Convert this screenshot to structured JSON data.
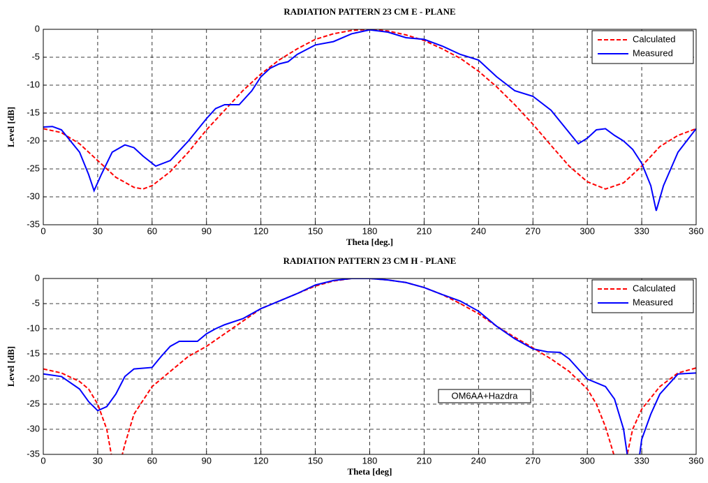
{
  "chart_data": [
    {
      "type": "line",
      "title": "RADIATION PATTERN 23 CM E - PLANE",
      "xlabel": "Theta [deg.]",
      "ylabel": "Level [dB]",
      "xlim": [
        0,
        360
      ],
      "ylim": [
        -35,
        0
      ],
      "xticks": [
        0,
        30,
        60,
        90,
        120,
        150,
        180,
        210,
        240,
        270,
        300,
        330,
        360
      ],
      "yticks": [
        0,
        -5,
        -10,
        -15,
        -20,
        -25,
        -30,
        -35
      ],
      "grid": true,
      "legend": "upper right",
      "series": [
        {
          "name": "Calculated",
          "color": "#ff0000",
          "dash": "dashed",
          "x": [
            0,
            10,
            20,
            30,
            40,
            50,
            55,
            60,
            70,
            80,
            90,
            100,
            110,
            120,
            130,
            140,
            150,
            160,
            170,
            180,
            190,
            200,
            210,
            220,
            230,
            240,
            250,
            260,
            270,
            280,
            290,
            300,
            310,
            320,
            330,
            340,
            350,
            360
          ],
          "values": [
            -17.8,
            -18.5,
            -20.5,
            -23.5,
            -26.5,
            -28.3,
            -28.6,
            -28,
            -25.5,
            -22,
            -18,
            -14.5,
            -11,
            -8,
            -5.5,
            -3.5,
            -1.8,
            -0.8,
            -0.2,
            0,
            -0.3,
            -1,
            -2,
            -3.5,
            -5.2,
            -7.5,
            -10.3,
            -13.5,
            -17,
            -20.8,
            -24.5,
            -27.3,
            -28.6,
            -27.5,
            -24.5,
            -21,
            -19,
            -17.8
          ]
        },
        {
          "name": "Measured",
          "color": "#0000ff",
          "dash": "solid",
          "x": [
            0,
            5,
            10,
            20,
            25,
            28,
            32,
            38,
            45,
            50,
            55,
            62,
            70,
            80,
            90,
            95,
            100,
            108,
            115,
            120,
            125,
            130,
            135,
            140,
            150,
            160,
            170,
            180,
            190,
            200,
            210,
            220,
            230,
            240,
            250,
            260,
            270,
            280,
            290,
            295,
            300,
            305,
            310,
            315,
            320,
            325,
            330,
            335,
            338,
            342,
            350,
            360
          ],
          "values": [
            -17.5,
            -17.4,
            -18,
            -22,
            -26,
            -28.9,
            -26,
            -22,
            -20.7,
            -21.2,
            -22.7,
            -24.5,
            -23.5,
            -20,
            -16,
            -14.2,
            -13.5,
            -13.5,
            -11,
            -8.5,
            -7,
            -6.2,
            -5.8,
            -4.5,
            -2.8,
            -2.2,
            -0.8,
            -0.1,
            -0.5,
            -1.5,
            -1.8,
            -3,
            -4.5,
            -5.5,
            -8.5,
            -11,
            -12,
            -14.5,
            -18.5,
            -20.5,
            -19.5,
            -18,
            -17.8,
            -19,
            -20,
            -21.5,
            -24,
            -28,
            -32.5,
            -28,
            -22,
            -17.8
          ]
        }
      ]
    },
    {
      "type": "line",
      "title": "RADIATION PATTERN 23 CM H - PLANE",
      "xlabel": "Theta [deg]",
      "ylabel": "Level [dB]",
      "xlim": [
        0,
        360
      ],
      "ylim": [
        -35,
        0
      ],
      "xticks": [
        0,
        30,
        60,
        90,
        120,
        150,
        180,
        210,
        240,
        270,
        300,
        330,
        360
      ],
      "yticks": [
        0,
        -5,
        -10,
        -15,
        -20,
        -25,
        -30,
        -35
      ],
      "grid": true,
      "legend": "upper right",
      "annotation": "OM6AA+Hazdra",
      "series": [
        {
          "name": "Calculated",
          "color": "#ff0000",
          "dash": "dashed",
          "x": [
            0,
            10,
            20,
            25,
            30,
            35,
            40,
            45,
            50,
            60,
            70,
            80,
            90,
            100,
            110,
            120,
            130,
            140,
            150,
            160,
            170,
            180,
            190,
            200,
            210,
            220,
            230,
            240,
            250,
            260,
            270,
            280,
            290,
            300,
            305,
            310,
            315,
            318,
            322,
            325,
            330,
            340,
            350,
            360
          ],
          "values": [
            -18,
            -18.8,
            -20.5,
            -22,
            -25,
            -30,
            -40,
            -33,
            -27,
            -21.5,
            -18.5,
            -15.5,
            -13.5,
            -11,
            -8.5,
            -6,
            -4.5,
            -3,
            -1.5,
            -0.5,
            0,
            0,
            -0.3,
            -0.8,
            -1.8,
            -3.2,
            -5,
            -7,
            -9.5,
            -11.7,
            -13.8,
            -16,
            -18.5,
            -22,
            -25,
            -29.5,
            -35.5,
            -40,
            -35,
            -30,
            -26,
            -21.5,
            -18.8,
            -17.8
          ]
        },
        {
          "name": "Measured",
          "color": "#0000ff",
          "dash": "solid",
          "x": [
            0,
            10,
            20,
            25,
            30,
            35,
            40,
            45,
            50,
            60,
            65,
            70,
            75,
            85,
            90,
            95,
            100,
            110,
            120,
            130,
            140,
            150,
            160,
            170,
            180,
            190,
            200,
            210,
            220,
            230,
            240,
            250,
            260,
            270,
            278,
            285,
            290,
            300,
            310,
            315,
            320,
            324,
            327,
            330,
            335,
            340,
            350,
            360
          ],
          "values": [
            -19,
            -19.5,
            -22,
            -24.5,
            -26.3,
            -25.5,
            -23,
            -19.5,
            -18,
            -17.7,
            -15.5,
            -13.5,
            -12.5,
            -12.5,
            -11,
            -10,
            -9.2,
            -8,
            -6,
            -4.5,
            -3,
            -1.3,
            -0.4,
            0,
            0,
            -0.3,
            -0.8,
            -1.8,
            -3.2,
            -4.5,
            -6.5,
            -9.5,
            -12,
            -14,
            -14.6,
            -14.7,
            -16,
            -20,
            -21.5,
            -24,
            -30,
            -40,
            -40,
            -32,
            -27,
            -23,
            -19,
            -18.8
          ]
        }
      ]
    }
  ]
}
